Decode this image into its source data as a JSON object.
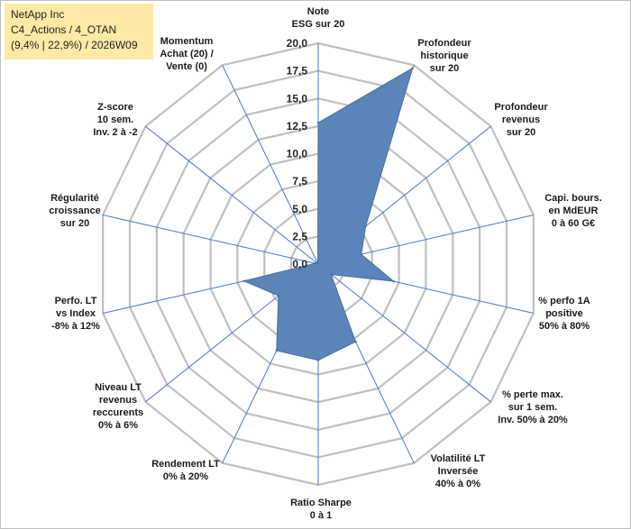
{
  "title_box": {
    "line1": "NetApp Inc",
    "line2": "C4_Actions / 4_OTAN",
    "line3": "(9,4% | 22,9%) / 2026W09"
  },
  "colors": {
    "area_fill": "#5b84b8",
    "area_stroke": "#4a6fa0",
    "grid": "#bfbfbf",
    "spokes": "#4a78c8",
    "title_bg": "#ffe9a6"
  },
  "chart_data": {
    "type": "radar",
    "rmin": 0,
    "rmax": 20,
    "ticks": [
      "0,0",
      "2,5",
      "5,0",
      "7,5",
      "10,0",
      "12,5",
      "15,0",
      "17,5",
      "20,0"
    ],
    "tick_values": [
      0,
      2.5,
      5,
      7.5,
      10,
      12.5,
      15,
      17.5,
      20
    ],
    "axes": [
      {
        "label": [
          "Note",
          "ESG sur 20"
        ],
        "value": 12.8
      },
      {
        "label": [
          "Profondeur",
          "historique",
          "sur 20"
        ],
        "value": 19.7
      },
      {
        "label": [
          "Profondeur",
          "revenus",
          "sur 20"
        ],
        "value": 5.5
      },
      {
        "label": [
          "Capi. bours.",
          "en MdEUR",
          "0 à 60 G€"
        ],
        "value": 4.0
      },
      {
        "label": [
          "% perfo 1A",
          "positive",
          "50% à 80%"
        ],
        "value": 7.0
      },
      {
        "label": [
          "% perte max.",
          "sur 1 sem.",
          "Inv. 50% à 20%"
        ],
        "value": 1.5
      },
      {
        "label": [
          "Volatilité LT",
          "Inversée",
          "40% à 0%"
        ],
        "value": 7.8
      },
      {
        "label": [
          "Ratio Sharpe",
          "0 à 1"
        ],
        "value": 8.7
      },
      {
        "label": [
          "Rendement LT",
          "0% à 20%"
        ],
        "value": 8.7
      },
      {
        "label": [
          "Niveau LT",
          "revenus",
          "reccurents",
          "0% à 6%"
        ],
        "value": 4.6
      },
      {
        "label": [
          "Perfo. LT",
          "vs Index",
          "-8% à 12%"
        ],
        "value": 6.9
      },
      {
        "label": [
          "Régularité",
          "croissance",
          "sur 20"
        ],
        "value": 0.3
      },
      {
        "label": [
          "Z-score",
          "10 sem.",
          "Inv. 2 à -2"
        ],
        "value": 0.2
      },
      {
        "label": [
          "Momentum",
          "Achat (20) /",
          "Vente (0)"
        ],
        "value": 0.1
      }
    ]
  }
}
